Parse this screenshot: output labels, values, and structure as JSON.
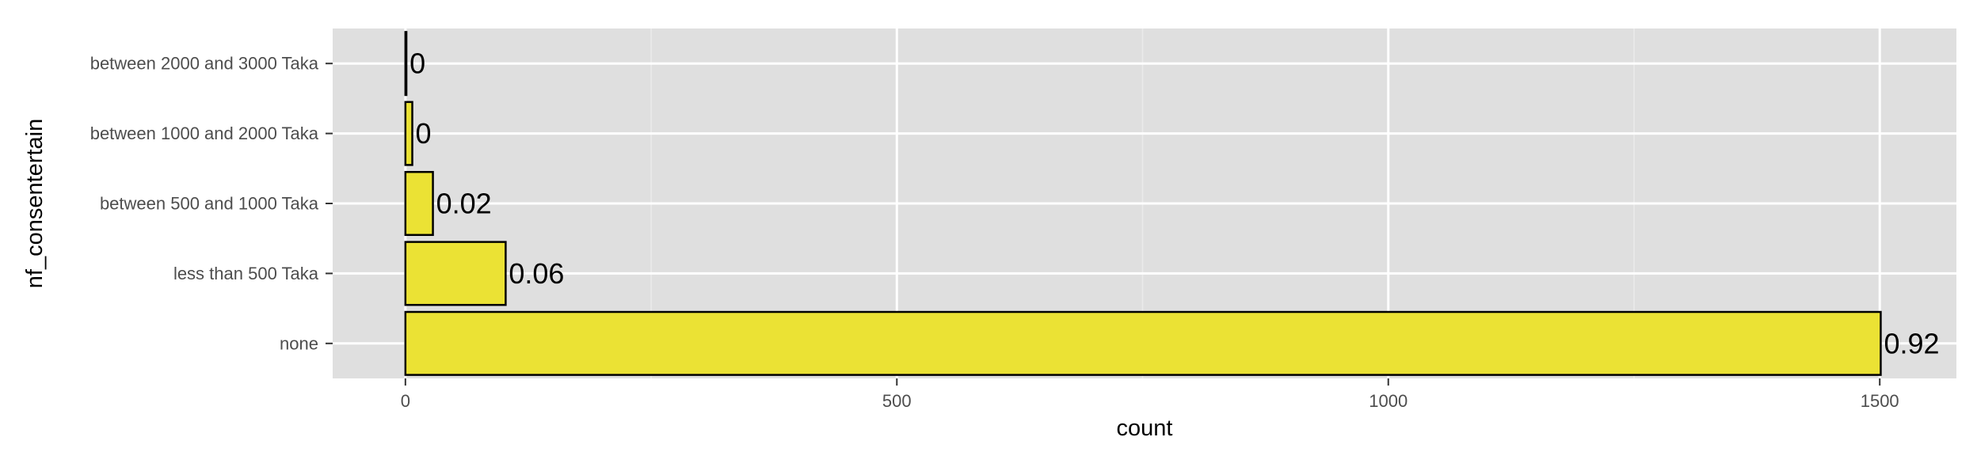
{
  "chart_data": {
    "type": "bar",
    "orientation": "horizontal",
    "xlabel": "count",
    "ylabel": "nf_consentertain",
    "categories": [
      "none",
      "less than 500 Taka",
      "between 500 and 1000 Taka",
      "between 1000 and 2000 Taka",
      "between 2000 and 3000 Taka"
    ],
    "values": [
      1501,
      102,
      28,
      7,
      1
    ],
    "labels": [
      "0.92",
      "0.06",
      "0.02",
      "0",
      "0"
    ],
    "xlim": [
      -74,
      1578
    ],
    "xticks": [
      0,
      500,
      1000,
      1500
    ],
    "xtick_labels": [
      "0",
      "500",
      "1000",
      "1500"
    ],
    "grid": true,
    "colors": {
      "bar_fill": "#EBE234",
      "bar_stroke": "#000000",
      "panel": "#DFDFDF",
      "grid_major": "#FFFFFF",
      "grid_minor": "#EBEBEB",
      "tick_text": "#4D4D4D"
    }
  }
}
